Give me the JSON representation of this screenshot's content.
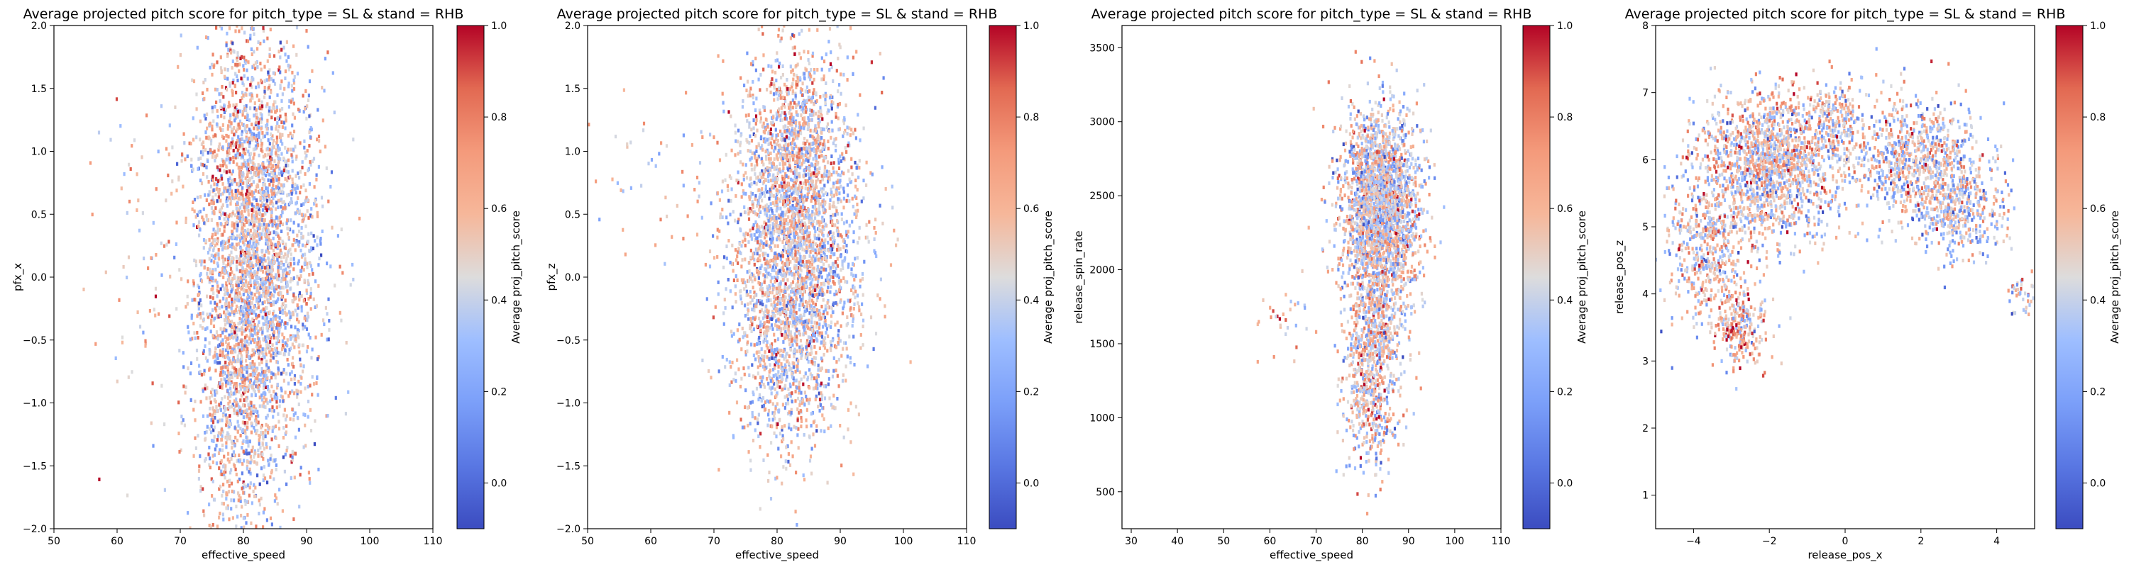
{
  "chart_data": [
    {
      "type": "heatmap",
      "title": "Average projected pitch score for pitch_type = SL & stand = RHB",
      "xlabel": "effective_speed",
      "ylabel": "pfx_x",
      "xlim": [
        50,
        110
      ],
      "ylim": [
        -2.0,
        2.0
      ],
      "xticks": [
        "50",
        "60",
        "70",
        "80",
        "90",
        "100",
        "110"
      ],
      "xtick_values": [
        50,
        60,
        70,
        80,
        90,
        100,
        110
      ],
      "yticks": [
        "−2.0",
        "−1.5",
        "−1.0",
        "−0.5",
        "0.0",
        "0.5",
        "1.0",
        "1.5",
        "2.0"
      ],
      "ytick_values": [
        -2.0,
        -1.5,
        -1.0,
        -0.5,
        0.0,
        0.5,
        1.0,
        1.5,
        2.0
      ],
      "colorbar_label": "Average proj_pitch_score",
      "colorbar_ticks": [
        "0.0",
        "0.2",
        "0.4",
        "0.6",
        "0.8",
        "1.0"
      ],
      "colorbar_tick_values": [
        0.0,
        0.2,
        0.4,
        0.6,
        0.8,
        1.0
      ],
      "colorbar_range": [
        -0.1,
        1.0
      ],
      "colormap": "coolwarm",
      "clusters": [
        {
          "x": 83,
          "y": 0.1,
          "sx": 4.8,
          "sy": 0.85,
          "v": 0.44,
          "n": 2600
        },
        {
          "x": 79,
          "y": 0.8,
          "sx": 3.5,
          "sy": 0.7,
          "v": 0.58,
          "n": 700
        },
        {
          "x": 79,
          "y": -1.0,
          "sx": 3.0,
          "sy": 0.6,
          "v": 0.5,
          "n": 700
        },
        {
          "x": 66,
          "y": 0.2,
          "sx": 6.0,
          "sy": 0.7,
          "v": 0.55,
          "n": 90
        }
      ]
    },
    {
      "type": "heatmap",
      "title": "Average projected pitch score for pitch_type = SL & stand = RHB",
      "xlabel": "effective_speed",
      "ylabel": "pfx_z",
      "xlim": [
        50,
        110
      ],
      "ylim": [
        -2.0,
        2.0
      ],
      "xticks": [
        "50",
        "60",
        "70",
        "80",
        "90",
        "100",
        "110"
      ],
      "xtick_values": [
        50,
        60,
        70,
        80,
        90,
        100,
        110
      ],
      "yticks": [
        "−2.0",
        "−1.5",
        "−1.0",
        "−0.5",
        "0.0",
        "0.5",
        "1.0",
        "1.5",
        "2.0"
      ],
      "ytick_values": [
        -2.0,
        -1.5,
        -1.0,
        -0.5,
        0.0,
        0.5,
        1.0,
        1.5,
        2.0
      ],
      "colorbar_label": "Average proj_pitch_score",
      "colorbar_ticks": [
        "0.0",
        "0.2",
        "0.4",
        "0.6",
        "0.8",
        "1.0"
      ],
      "colorbar_tick_values": [
        0.0,
        0.2,
        0.4,
        0.6,
        0.8,
        1.0
      ],
      "colorbar_range": [
        -0.1,
        1.0
      ],
      "colormap": "coolwarm",
      "clusters": [
        {
          "x": 83,
          "y": 0.3,
          "sx": 4.8,
          "sy": 0.6,
          "v": 0.45,
          "n": 2600
        },
        {
          "x": 83,
          "y": 1.2,
          "sx": 4.0,
          "sy": 0.35,
          "v": 0.55,
          "n": 500
        },
        {
          "x": 81,
          "y": -0.7,
          "sx": 4.0,
          "sy": 0.4,
          "v": 0.45,
          "n": 500
        },
        {
          "x": 62,
          "y": 0.8,
          "sx": 5.0,
          "sy": 0.4,
          "v": 0.55,
          "n": 50
        }
      ]
    },
    {
      "type": "heatmap",
      "title": "Average projected pitch score for pitch_type = SL & stand = RHB",
      "xlabel": "effective_speed",
      "ylabel": "release_spin_rate",
      "xlim": [
        28,
        110
      ],
      "ylim": [
        250,
        3650
      ],
      "xticks": [
        "30",
        "40",
        "50",
        "60",
        "70",
        "80",
        "90",
        "100",
        "110"
      ],
      "xtick_values": [
        30,
        40,
        50,
        60,
        70,
        80,
        90,
        100,
        110
      ],
      "yticks": [
        "500",
        "1000",
        "1500",
        "2000",
        "2500",
        "3000",
        "3500"
      ],
      "ytick_values": [
        500,
        1000,
        1500,
        2000,
        2500,
        3000,
        3500
      ],
      "colorbar_label": "Average proj_pitch_score",
      "colorbar_ticks": [
        "0.0",
        "0.2",
        "0.4",
        "0.6",
        "0.8",
        "1.0"
      ],
      "colorbar_tick_values": [
        0.0,
        0.2,
        0.4,
        0.6,
        0.8,
        1.0
      ],
      "colorbar_range": [
        -0.1,
        1.0
      ],
      "colormap": "coolwarm",
      "clusters": [
        {
          "x": 84,
          "y": 2400,
          "sx": 4.2,
          "sy": 330,
          "v": 0.45,
          "n": 2400
        },
        {
          "x": 82,
          "y": 1200,
          "sx": 3.0,
          "sy": 280,
          "v": 0.5,
          "n": 500
        },
        {
          "x": 83,
          "y": 1650,
          "sx": 3.0,
          "sy": 200,
          "v": 0.48,
          "n": 300
        },
        {
          "x": 62,
          "y": 1650,
          "sx": 4.0,
          "sy": 150,
          "v": 0.55,
          "n": 30
        }
      ]
    },
    {
      "type": "heatmap",
      "title": "Average projected pitch score for pitch_type = SL & stand = RHB",
      "xlabel": "release_pos_x",
      "ylabel": "release_pos_z",
      "xlim": [
        -5,
        5
      ],
      "ylim": [
        0.5,
        8
      ],
      "xticks": [
        "−4",
        "−2",
        "0",
        "2",
        "4"
      ],
      "xtick_values": [
        -4,
        -2,
        0,
        2,
        4
      ],
      "yticks": [
        "1",
        "2",
        "3",
        "4",
        "5",
        "6",
        "7",
        "8"
      ],
      "ytick_values": [
        1,
        2,
        3,
        4,
        5,
        6,
        7,
        8
      ],
      "colorbar_label": "Average proj_pitch_score",
      "colorbar_ticks": [
        "0.0",
        "0.2",
        "0.4",
        "0.6",
        "0.8",
        "1.0"
      ],
      "colorbar_tick_values": [
        0.0,
        0.2,
        0.4,
        0.6,
        0.8,
        1.0
      ],
      "colorbar_range": [
        -0.1,
        1.0
      ],
      "colormap": "coolwarm",
      "clusters": [
        {
          "x": -2.0,
          "y": 5.9,
          "sx": 0.9,
          "sy": 0.55,
          "v": 0.48,
          "n": 1500
        },
        {
          "x": 1.8,
          "y": 6.0,
          "sx": 0.9,
          "sy": 0.45,
          "v": 0.45,
          "n": 800
        },
        {
          "x": 3.0,
          "y": 5.3,
          "sx": 0.6,
          "sy": 0.4,
          "v": 0.42,
          "n": 400
        },
        {
          "x": -3.6,
          "y": 4.7,
          "sx": 0.55,
          "sy": 0.6,
          "v": 0.5,
          "n": 500
        },
        {
          "x": -2.8,
          "y": 3.5,
          "sx": 0.35,
          "sy": 0.3,
          "v": 0.6,
          "n": 250
        },
        {
          "x": -0.2,
          "y": 6.6,
          "sx": 0.4,
          "sy": 0.3,
          "v": 0.48,
          "n": 200
        },
        {
          "x": 4.6,
          "y": 4.0,
          "sx": 0.2,
          "sy": 0.15,
          "v": 0.45,
          "n": 40
        }
      ]
    }
  ]
}
